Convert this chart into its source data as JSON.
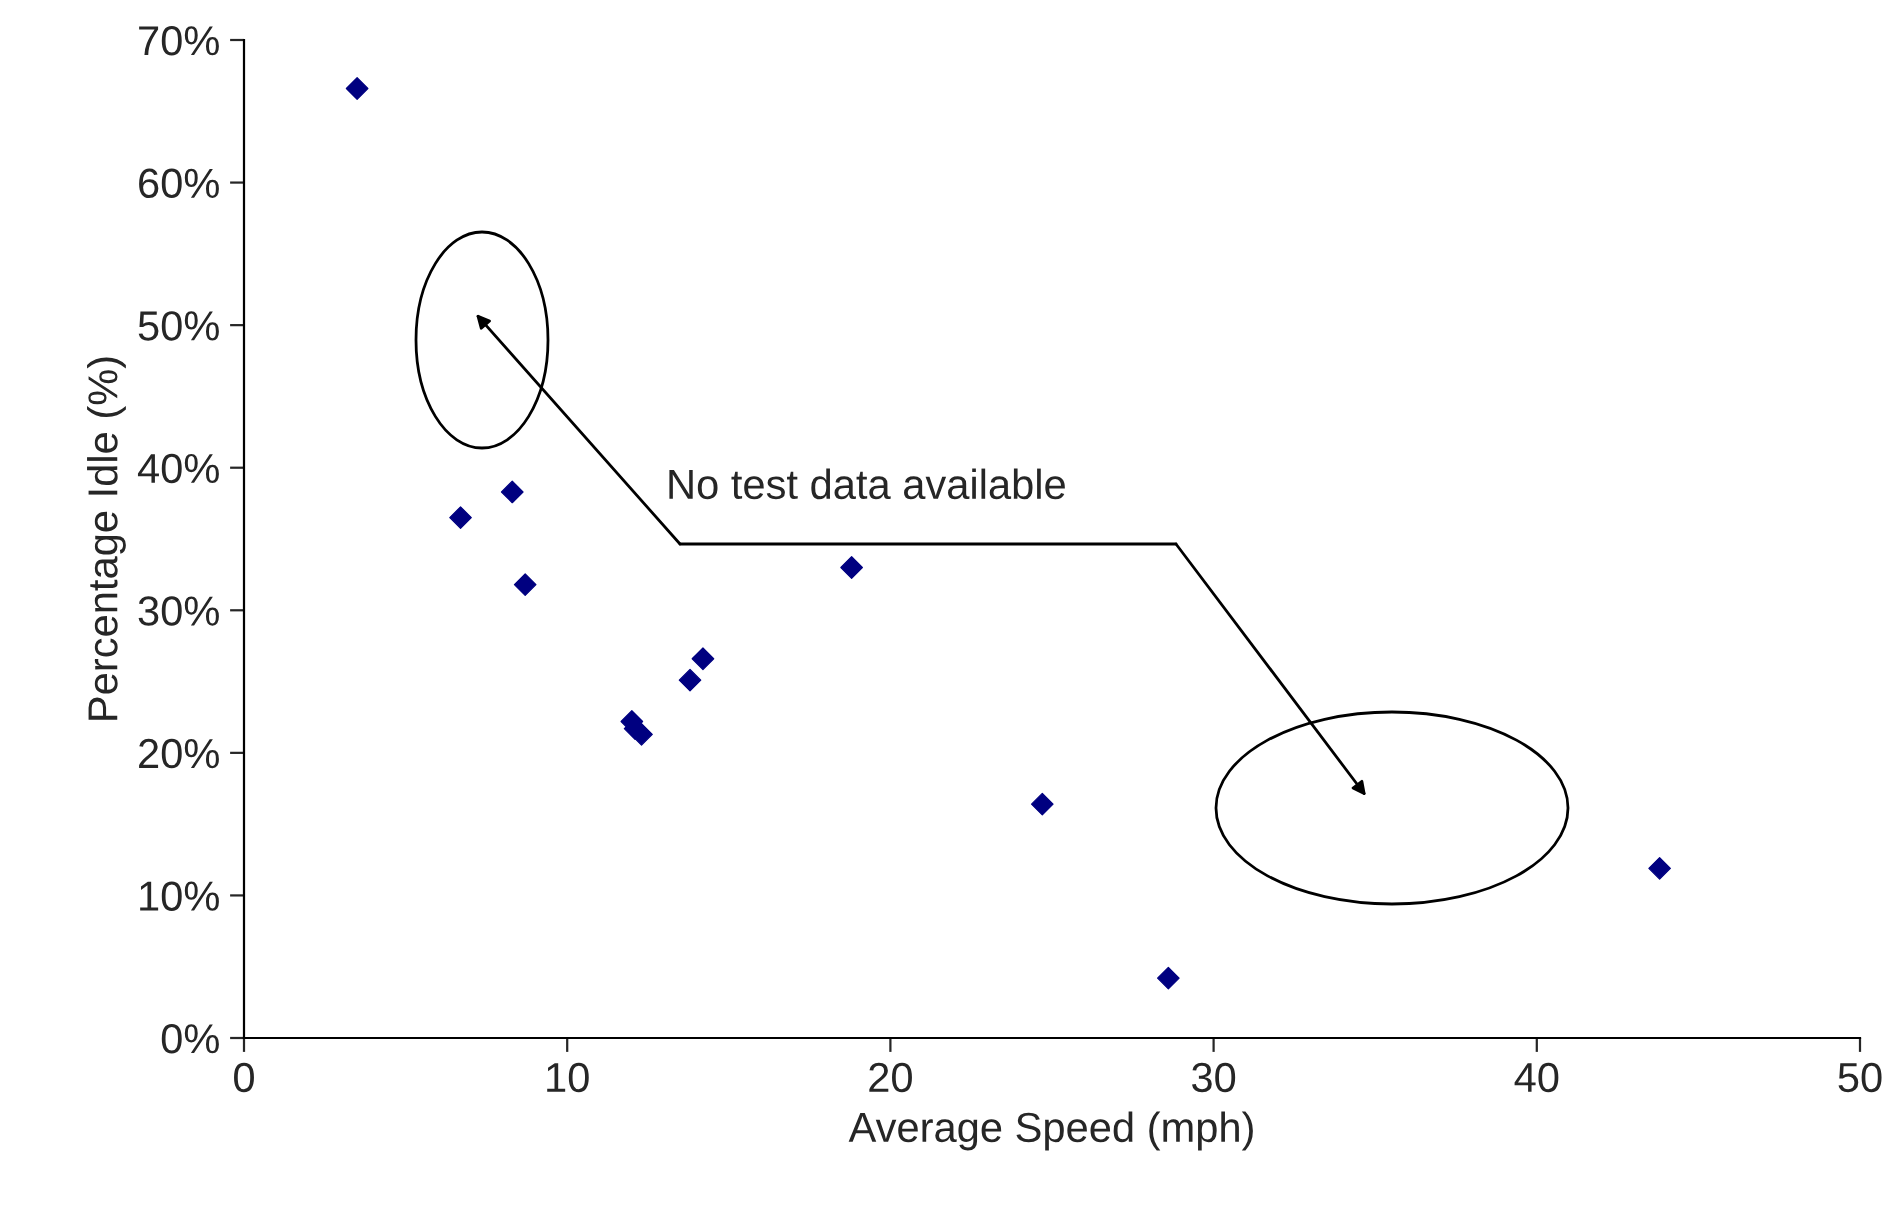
{
  "chart_data": {
    "type": "scatter",
    "xlabel": "Average Speed (mph)",
    "ylabel": "Percentage Idle (%)",
    "x": [
      3.5,
      6.7,
      8.3,
      8.7,
      12.0,
      12.1,
      12.3,
      13.8,
      14.2,
      18.8,
      24.7,
      28.6,
      43.8
    ],
    "series": [
      {
        "color": "#000080",
        "values": [
          66.6,
          36.5,
          38.3,
          31.8,
          22.2,
          21.7,
          21.3,
          25.1,
          26.6,
          33.0,
          16.4,
          4.2,
          11.9
        ]
      }
    ],
    "xlim": [
      0,
      50
    ],
    "xticks": [
      0,
      10,
      20,
      30,
      40,
      50
    ],
    "ylim": [
      0,
      70
    ],
    "yticks": [
      {
        "value": 0,
        "label": "0%"
      },
      {
        "value": 10,
        "label": "10%"
      },
      {
        "value": 20,
        "label": "20%"
      },
      {
        "value": 30,
        "label": "30%"
      },
      {
        "value": 40,
        "label": "40%"
      },
      {
        "value": 50,
        "label": "50%"
      },
      {
        "value": 60,
        "label": "60%"
      },
      {
        "value": 70,
        "label": "70%"
      }
    ],
    "marker": "diamond",
    "grid": false,
    "legend": false,
    "annotations": [
      "No test data available"
    ]
  }
}
